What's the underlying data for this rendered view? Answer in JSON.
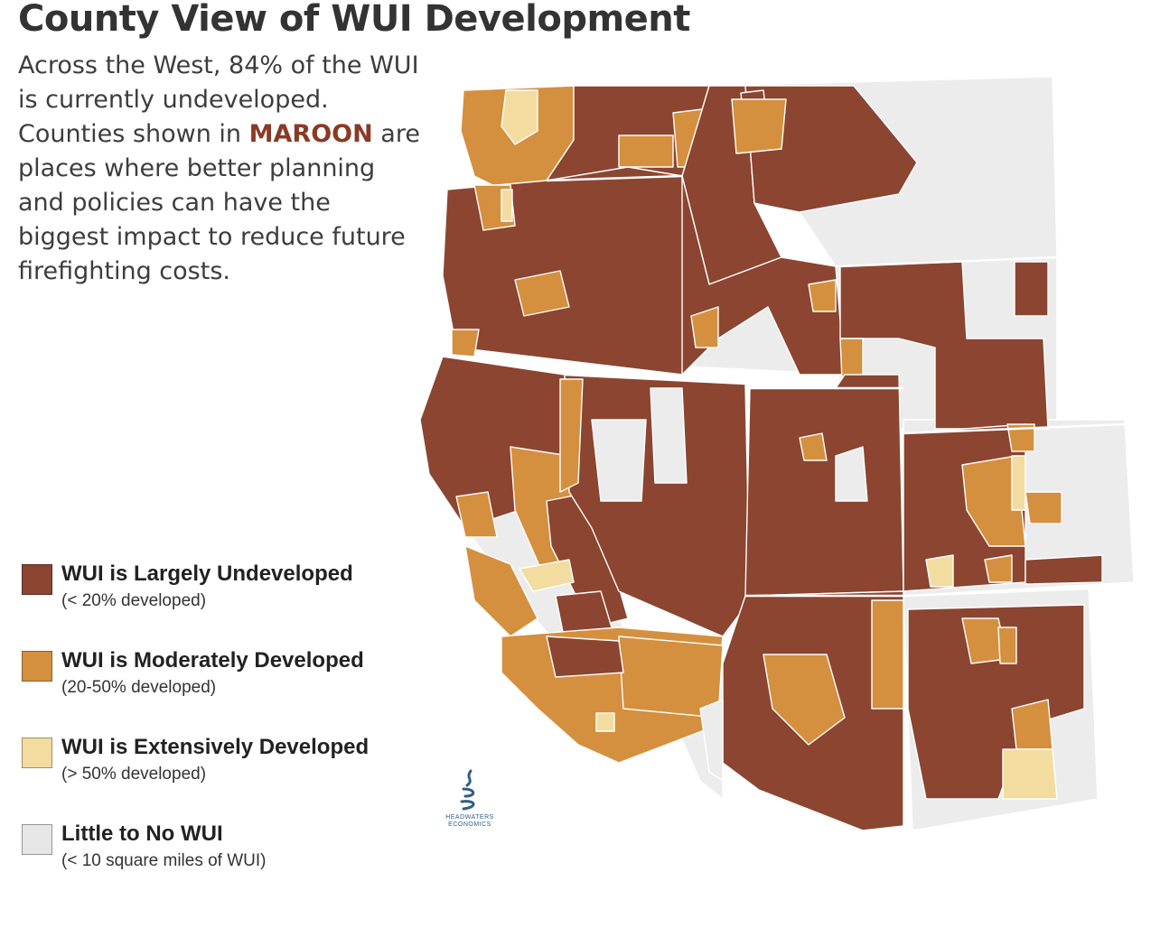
{
  "header": {
    "title": "County View of WUI Development"
  },
  "description": {
    "line_before_highlight": "Across the West, 84% of the WUI is currently undeveloped. Counties shown in",
    "highlight": "MAROON",
    "line_after_highlight": "are places where better planning and policies can have the biggest impact to reduce future firefighting costs."
  },
  "colors": {
    "undeveloped": "#8b4531",
    "moderate": "#d4903f",
    "extensive": "#f2dca0",
    "little": "#ececec",
    "border": "#ffffff",
    "highlight": "#8a3a24"
  },
  "legend": {
    "items": [
      {
        "label": "WUI is Largely Undeveloped",
        "sub": "(< 20% developed)",
        "color": "#8b4531"
      },
      {
        "label": "WUI is Moderately Developed",
        "sub": "(20-50% developed)",
        "color": "#d4903f"
      },
      {
        "label": "WUI is Extensively Developed",
        "sub": "(> 50% developed)",
        "color": "#f2dca0"
      },
      {
        "label": "Little to No WUI",
        "sub": "(< 10 square miles of WUI)",
        "color": "#e6e6e6"
      }
    ]
  },
  "logo": {
    "icon": "water-drop-swirl-icon",
    "line1": "HEADWATERS",
    "line2": "ECONOMICS"
  }
}
